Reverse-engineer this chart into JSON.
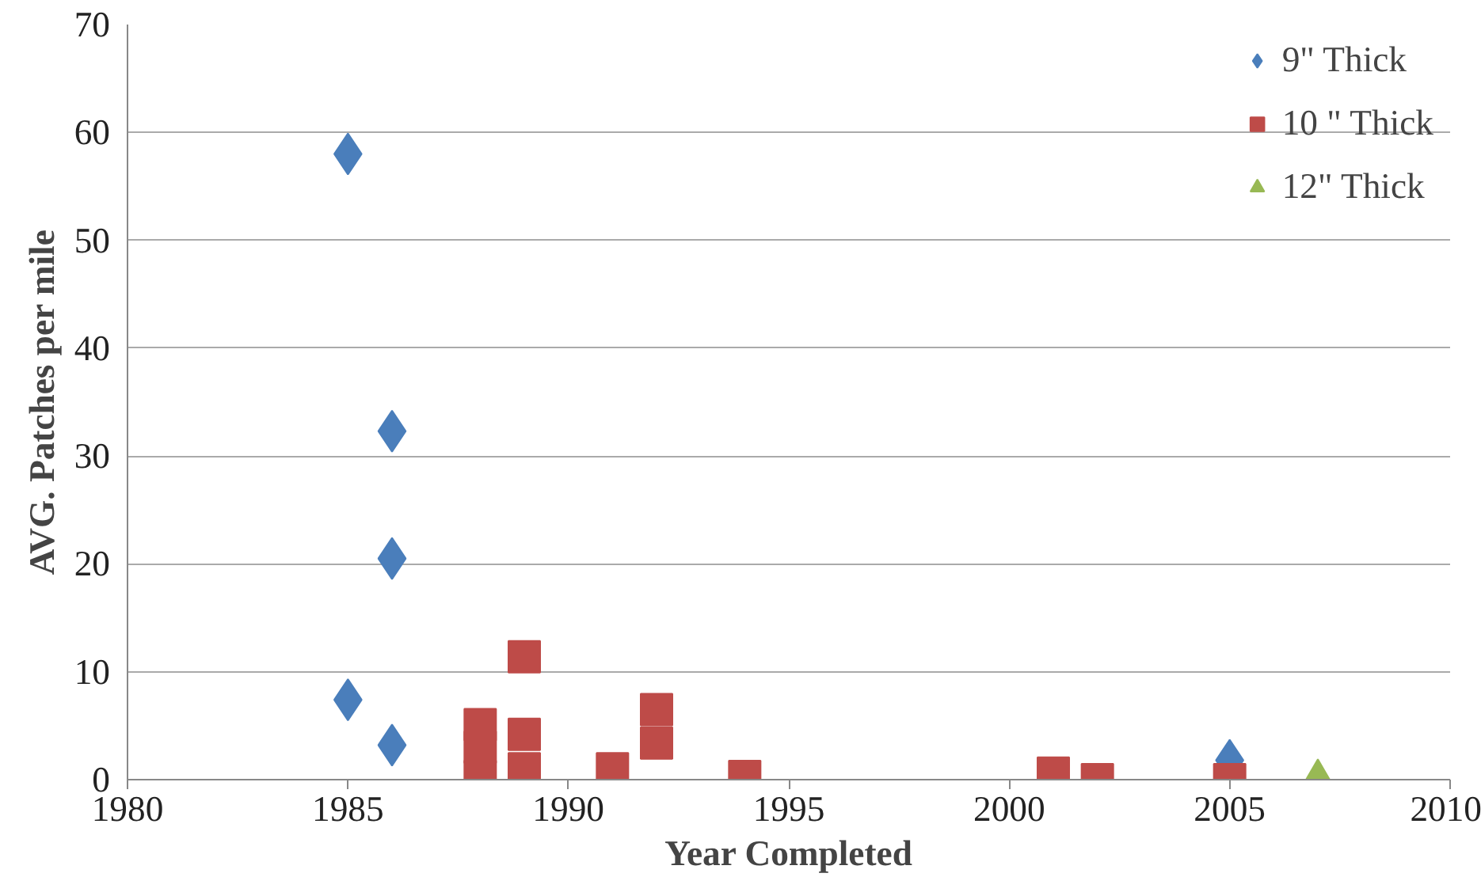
{
  "chart_data": {
    "type": "scatter",
    "xlabel": "Year Completed",
    "ylabel": "AVG. Patches per mile",
    "xlim": [
      1980,
      2010
    ],
    "xticks": [
      1980,
      1985,
      1990,
      1995,
      2000,
      2005,
      2010
    ],
    "ylim": [
      0,
      70
    ],
    "yticks": [
      0,
      10,
      20,
      30,
      40,
      50,
      60,
      70
    ],
    "grid": "y",
    "legend": "top right",
    "series": [
      {
        "name": "9\" Thick",
        "color": "#4a7ebb",
        "marker": "diamond",
        "x": [
          1985,
          1986,
          1986,
          1985,
          1986,
          2005
        ],
        "values": [
          58,
          32.3,
          20.5,
          7.4,
          3.2,
          1.8
        ]
      },
      {
        "name": "10 \" Thick",
        "color": "#be4b48",
        "marker": "square",
        "x": [
          1988,
          1988,
          1988,
          1989,
          1989,
          1989,
          1991,
          1992,
          1992,
          1994,
          2001,
          2002,
          2005
        ],
        "values": [
          5.1,
          3.0,
          0.3,
          11.4,
          4.2,
          1.0,
          1.0,
          6.5,
          3.4,
          0.3,
          0.6,
          0,
          0
        ]
      },
      {
        "name": "12\" Thick",
        "color": "#98b954",
        "marker": "triangle",
        "x": [
          2007
        ],
        "values": [
          0.2
        ]
      }
    ]
  }
}
